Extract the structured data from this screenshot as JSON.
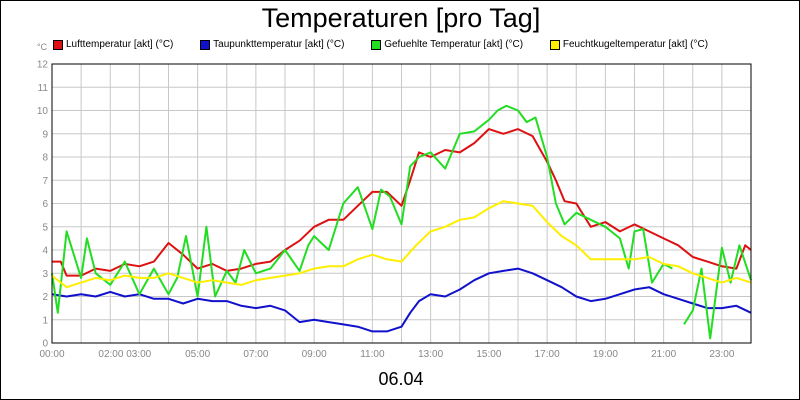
{
  "title": "Temperaturen [pro Tag]",
  "date_label": "06.04",
  "unit_label": "°C",
  "chart_data": {
    "type": "line",
    "title": "Temperaturen [pro Tag]",
    "ylabel": "°C",
    "ylim": [
      0,
      12
    ],
    "xlim": [
      0,
      24
    ],
    "grid": true,
    "legend_position": "top",
    "y_ticks": [
      0,
      1,
      2,
      3,
      4,
      5,
      6,
      7,
      8,
      9,
      10,
      11,
      12
    ],
    "x_ticks": [
      {
        "hour": 0,
        "label": "00:00"
      },
      {
        "hour": 2.5,
        "label": "02:00 03:00"
      },
      {
        "hour": 5,
        "label": "05:00"
      },
      {
        "hour": 7,
        "label": "07:00"
      },
      {
        "hour": 9,
        "label": "09:00"
      },
      {
        "hour": 11,
        "label": "11:00"
      },
      {
        "hour": 13,
        "label": "13:00"
      },
      {
        "hour": 15,
        "label": "15:00"
      },
      {
        "hour": 17,
        "label": "17:00"
      },
      {
        "hour": 19,
        "label": "19:00"
      },
      {
        "hour": 21,
        "label": "21:00"
      },
      {
        "hour": 23,
        "label": "23:00"
      }
    ],
    "series": [
      {
        "name": "Lufttemperatur [akt] (°C)",
        "color": "#dd1111",
        "points": [
          [
            0,
            3.5
          ],
          [
            0.3,
            3.5
          ],
          [
            0.5,
            2.9
          ],
          [
            1,
            2.9
          ],
          [
            1.5,
            3.2
          ],
          [
            2,
            3.1
          ],
          [
            2.5,
            3.4
          ],
          [
            3,
            3.3
          ],
          [
            3.5,
            3.5
          ],
          [
            4,
            4.3
          ],
          [
            4.5,
            3.8
          ],
          [
            5,
            3.2
          ],
          [
            5.5,
            3.4
          ],
          [
            6,
            3.1
          ],
          [
            6.5,
            3.2
          ],
          [
            7,
            3.4
          ],
          [
            7.5,
            3.5
          ],
          [
            8,
            4.0
          ],
          [
            8.5,
            4.4
          ],
          [
            9,
            5.0
          ],
          [
            9.5,
            5.3
          ],
          [
            10,
            5.3
          ],
          [
            10.5,
            5.9
          ],
          [
            11,
            6.5
          ],
          [
            11.5,
            6.5
          ],
          [
            12,
            5.9
          ],
          [
            12.3,
            7.0
          ],
          [
            12.6,
            8.2
          ],
          [
            13,
            8.0
          ],
          [
            13.5,
            8.3
          ],
          [
            14,
            8.2
          ],
          [
            14.5,
            8.6
          ],
          [
            15,
            9.2
          ],
          [
            15.5,
            9.0
          ],
          [
            16,
            9.2
          ],
          [
            16.5,
            8.9
          ],
          [
            17,
            7.8
          ],
          [
            17.3,
            7.0
          ],
          [
            17.6,
            6.1
          ],
          [
            18,
            6.0
          ],
          [
            18.5,
            5.0
          ],
          [
            19,
            5.2
          ],
          [
            19.5,
            4.8
          ],
          [
            20,
            5.1
          ],
          [
            20.5,
            4.8
          ],
          [
            21,
            4.5
          ],
          [
            21.5,
            4.2
          ],
          [
            22,
            3.7
          ],
          [
            22.5,
            3.5
          ],
          [
            23,
            3.3
          ],
          [
            23.5,
            3.2
          ],
          [
            23.8,
            4.2
          ],
          [
            24,
            4.0
          ]
        ]
      },
      {
        "name": "Taupunkttemperatur [akt] (°C)",
        "color": "#1111cc",
        "points": [
          [
            0,
            2.1
          ],
          [
            0.5,
            2.0
          ],
          [
            1,
            2.1
          ],
          [
            1.5,
            2.0
          ],
          [
            2,
            2.2
          ],
          [
            2.5,
            2.0
          ],
          [
            3,
            2.1
          ],
          [
            3.5,
            1.9
          ],
          [
            4,
            1.9
          ],
          [
            4.5,
            1.7
          ],
          [
            5,
            1.9
          ],
          [
            5.5,
            1.8
          ],
          [
            6,
            1.8
          ],
          [
            6.5,
            1.6
          ],
          [
            7,
            1.5
          ],
          [
            7.5,
            1.6
          ],
          [
            8,
            1.4
          ],
          [
            8.5,
            0.9
          ],
          [
            9,
            1.0
          ],
          [
            9.5,
            0.9
          ],
          [
            10,
            0.8
          ],
          [
            10.5,
            0.7
          ],
          [
            11,
            0.5
          ],
          [
            11.5,
            0.5
          ],
          [
            12,
            0.7
          ],
          [
            12.3,
            1.3
          ],
          [
            12.6,
            1.8
          ],
          [
            13,
            2.1
          ],
          [
            13.5,
            2.0
          ],
          [
            14,
            2.3
          ],
          [
            14.5,
            2.7
          ],
          [
            15,
            3.0
          ],
          [
            15.5,
            3.1
          ],
          [
            16,
            3.2
          ],
          [
            16.5,
            3.0
          ],
          [
            17,
            2.7
          ],
          [
            17.5,
            2.4
          ],
          [
            18,
            2.0
          ],
          [
            18.5,
            1.8
          ],
          [
            19,
            1.9
          ],
          [
            19.5,
            2.1
          ],
          [
            20,
            2.3
          ],
          [
            20.5,
            2.4
          ],
          [
            21,
            2.1
          ],
          [
            21.5,
            1.9
          ],
          [
            22,
            1.7
          ],
          [
            22.5,
            1.5
          ],
          [
            23,
            1.5
          ],
          [
            23.5,
            1.6
          ],
          [
            24,
            1.3
          ]
        ]
      },
      {
        "name": "Gefuehlte Temperatur [akt] (°C)",
        "color": "#22dd22",
        "points": [
          [
            0,
            3.0
          ],
          [
            0.2,
            1.3
          ],
          [
            0.5,
            4.8
          ],
          [
            1,
            2.8
          ],
          [
            1.2,
            4.5
          ],
          [
            1.5,
            3.0
          ],
          [
            2,
            2.5
          ],
          [
            2.5,
            3.5
          ],
          [
            3,
            2.1
          ],
          [
            3.5,
            3.2
          ],
          [
            4,
            2.1
          ],
          [
            4.3,
            2.8
          ],
          [
            4.6,
            4.6
          ],
          [
            5,
            2.0
          ],
          [
            5.3,
            5.0
          ],
          [
            5.6,
            2.0
          ],
          [
            6,
            3.1
          ],
          [
            6.3,
            2.6
          ],
          [
            6.6,
            4.0
          ],
          [
            7,
            3.0
          ],
          [
            7.5,
            3.2
          ],
          [
            8,
            4.0
          ],
          [
            8.5,
            3.1
          ],
          [
            8.8,
            4.2
          ],
          [
            9,
            4.6
          ],
          [
            9.5,
            4.0
          ],
          [
            10,
            6.0
          ],
          [
            10.5,
            6.7
          ],
          [
            11,
            4.9
          ],
          [
            11.3,
            6.6
          ],
          [
            11.6,
            6.3
          ],
          [
            12,
            5.1
          ],
          [
            12.3,
            7.6
          ],
          [
            12.6,
            8.0
          ],
          [
            13,
            8.2
          ],
          [
            13.5,
            7.5
          ],
          [
            14,
            9.0
          ],
          [
            14.5,
            9.1
          ],
          [
            15,
            9.6
          ],
          [
            15.3,
            10.0
          ],
          [
            15.6,
            10.2
          ],
          [
            16,
            10.0
          ],
          [
            16.3,
            9.5
          ],
          [
            16.6,
            9.7
          ],
          [
            17,
            8.0
          ],
          [
            17.3,
            6.0
          ],
          [
            17.6,
            5.1
          ],
          [
            18,
            5.6
          ],
          [
            18.5,
            5.3
          ],
          [
            19,
            5.0
          ],
          [
            19.5,
            4.5
          ],
          [
            19.8,
            3.2
          ],
          [
            20,
            4.8
          ],
          [
            20.3,
            4.9
          ],
          [
            20.6,
            2.6
          ],
          [
            21,
            3.4
          ],
          [
            21.3,
            3.2
          ]
        ]
      },
      {
        "name": "Gefuehlte Temperatur [akt] (°C)",
        "color": "#22dd22",
        "points": [
          [
            21.7,
            0.8
          ],
          [
            22,
            1.4
          ],
          [
            22.3,
            3.2
          ],
          [
            22.6,
            0.2
          ],
          [
            23,
            4.1
          ],
          [
            23.3,
            2.6
          ],
          [
            23.6,
            4.2
          ],
          [
            24,
            2.7
          ]
        ]
      },
      {
        "name": "Feuchtkugeltemperatur [akt] (°C)",
        "color": "#ffee00",
        "points": [
          [
            0,
            2.9
          ],
          [
            0.5,
            2.4
          ],
          [
            1,
            2.6
          ],
          [
            1.5,
            2.8
          ],
          [
            2,
            2.7
          ],
          [
            2.5,
            2.9
          ],
          [
            3,
            2.8
          ],
          [
            3.5,
            2.8
          ],
          [
            4,
            3.0
          ],
          [
            4.5,
            2.8
          ],
          [
            5,
            2.6
          ],
          [
            5.5,
            2.7
          ],
          [
            6,
            2.6
          ],
          [
            6.5,
            2.5
          ],
          [
            7,
            2.7
          ],
          [
            7.5,
            2.8
          ],
          [
            8,
            2.9
          ],
          [
            8.5,
            3.0
          ],
          [
            9,
            3.2
          ],
          [
            9.5,
            3.3
          ],
          [
            10,
            3.3
          ],
          [
            10.5,
            3.6
          ],
          [
            11,
            3.8
          ],
          [
            11.5,
            3.6
          ],
          [
            12,
            3.5
          ],
          [
            12.5,
            4.2
          ],
          [
            13,
            4.8
          ],
          [
            13.5,
            5.0
          ],
          [
            14,
            5.3
          ],
          [
            14.5,
            5.4
          ],
          [
            15,
            5.8
          ],
          [
            15.5,
            6.1
          ],
          [
            16,
            6.0
          ],
          [
            16.5,
            5.9
          ],
          [
            17,
            5.2
          ],
          [
            17.5,
            4.6
          ],
          [
            18,
            4.2
          ],
          [
            18.5,
            3.6
          ],
          [
            19,
            3.6
          ],
          [
            19.5,
            3.6
          ],
          [
            20,
            3.6
          ],
          [
            20.5,
            3.7
          ],
          [
            21,
            3.4
          ],
          [
            21.5,
            3.3
          ],
          [
            22,
            3.0
          ],
          [
            22.5,
            2.8
          ],
          [
            23,
            2.6
          ],
          [
            23.5,
            2.8
          ],
          [
            24,
            2.6
          ]
        ]
      }
    ],
    "legend": [
      {
        "label": "Lufttemperatur [akt] (°C)",
        "color": "#dd1111"
      },
      {
        "label": "Taupunkttemperatur [akt] (°C)",
        "color": "#1111cc"
      },
      {
        "label": "Gefuehlte Temperatur [akt] (°C)",
        "color": "#22dd22"
      },
      {
        "label": "Feuchtkugeltemperatur [akt] (°C)",
        "color": "#ffee00"
      }
    ]
  }
}
